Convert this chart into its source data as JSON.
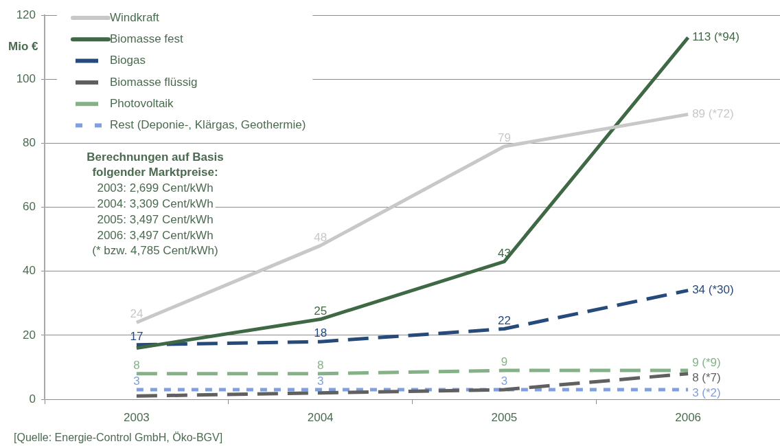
{
  "chart_data": {
    "type": "line",
    "ylabel": "Mio €",
    "categories": [
      "2003",
      "2004",
      "2005",
      "2006"
    ],
    "series": [
      {
        "name": "Windkraft",
        "color": "#c8c8c8",
        "values": [
          24,
          48,
          79,
          89
        ],
        "value_labels": [
          "24",
          "48",
          "79",
          "89 (*72)"
        ],
        "line_style": "solid"
      },
      {
        "name": "Biomasse fest",
        "color": "#3f6845",
        "values": [
          16,
          25,
          43,
          113
        ],
        "value_labels": [
          null,
          "25",
          "43",
          "113 (*94)"
        ],
        "line_style": "solid"
      },
      {
        "name": "Biogas",
        "color": "#264a7a",
        "values": [
          17,
          18,
          22,
          34
        ],
        "value_labels": [
          "17",
          "18",
          "22",
          "34 (*30)"
        ],
        "line_style": "dashed"
      },
      {
        "name": "Biomasse flüssig",
        "color": "#606060",
        "values": [
          1,
          2,
          3,
          8
        ],
        "value_labels": [
          null,
          null,
          null,
          "8 (*7)"
        ],
        "line_style": "dashed"
      },
      {
        "name": "Photovoltaik",
        "color": "#84b286",
        "values": [
          8,
          8,
          9,
          9
        ],
        "value_labels": [
          "8",
          "8",
          "9",
          "9 (*9)"
        ],
        "line_style": "dashed"
      },
      {
        "name": "Rest (Deponie-, Klärgas, Geothermie)",
        "color": "#7f9fdf",
        "values": [
          3,
          3,
          3,
          3
        ],
        "value_labels": [
          "3",
          "3",
          "3",
          "3 (*2)"
        ],
        "line_style": "dotted"
      }
    ],
    "ylim": [
      0,
      120
    ],
    "yticks": [
      0,
      20,
      40,
      60,
      80,
      100,
      120
    ],
    "grid": "y",
    "legend": "top left",
    "marker": "none",
    "annotations": [
      "Berechnungen auf Basis folgender Marktpreise:",
      "2003: 2,699 Cent/kWh",
      "2004: 3,309 Cent/kWh",
      "2005: 3,497 Cent/kWh",
      "2006: 3,497 Cent/kWh",
      "(* bzw. 4,785 Cent/kWh)",
      "[Quelle: Energie-Control GmbH, Öko-BGV]"
    ]
  }
}
